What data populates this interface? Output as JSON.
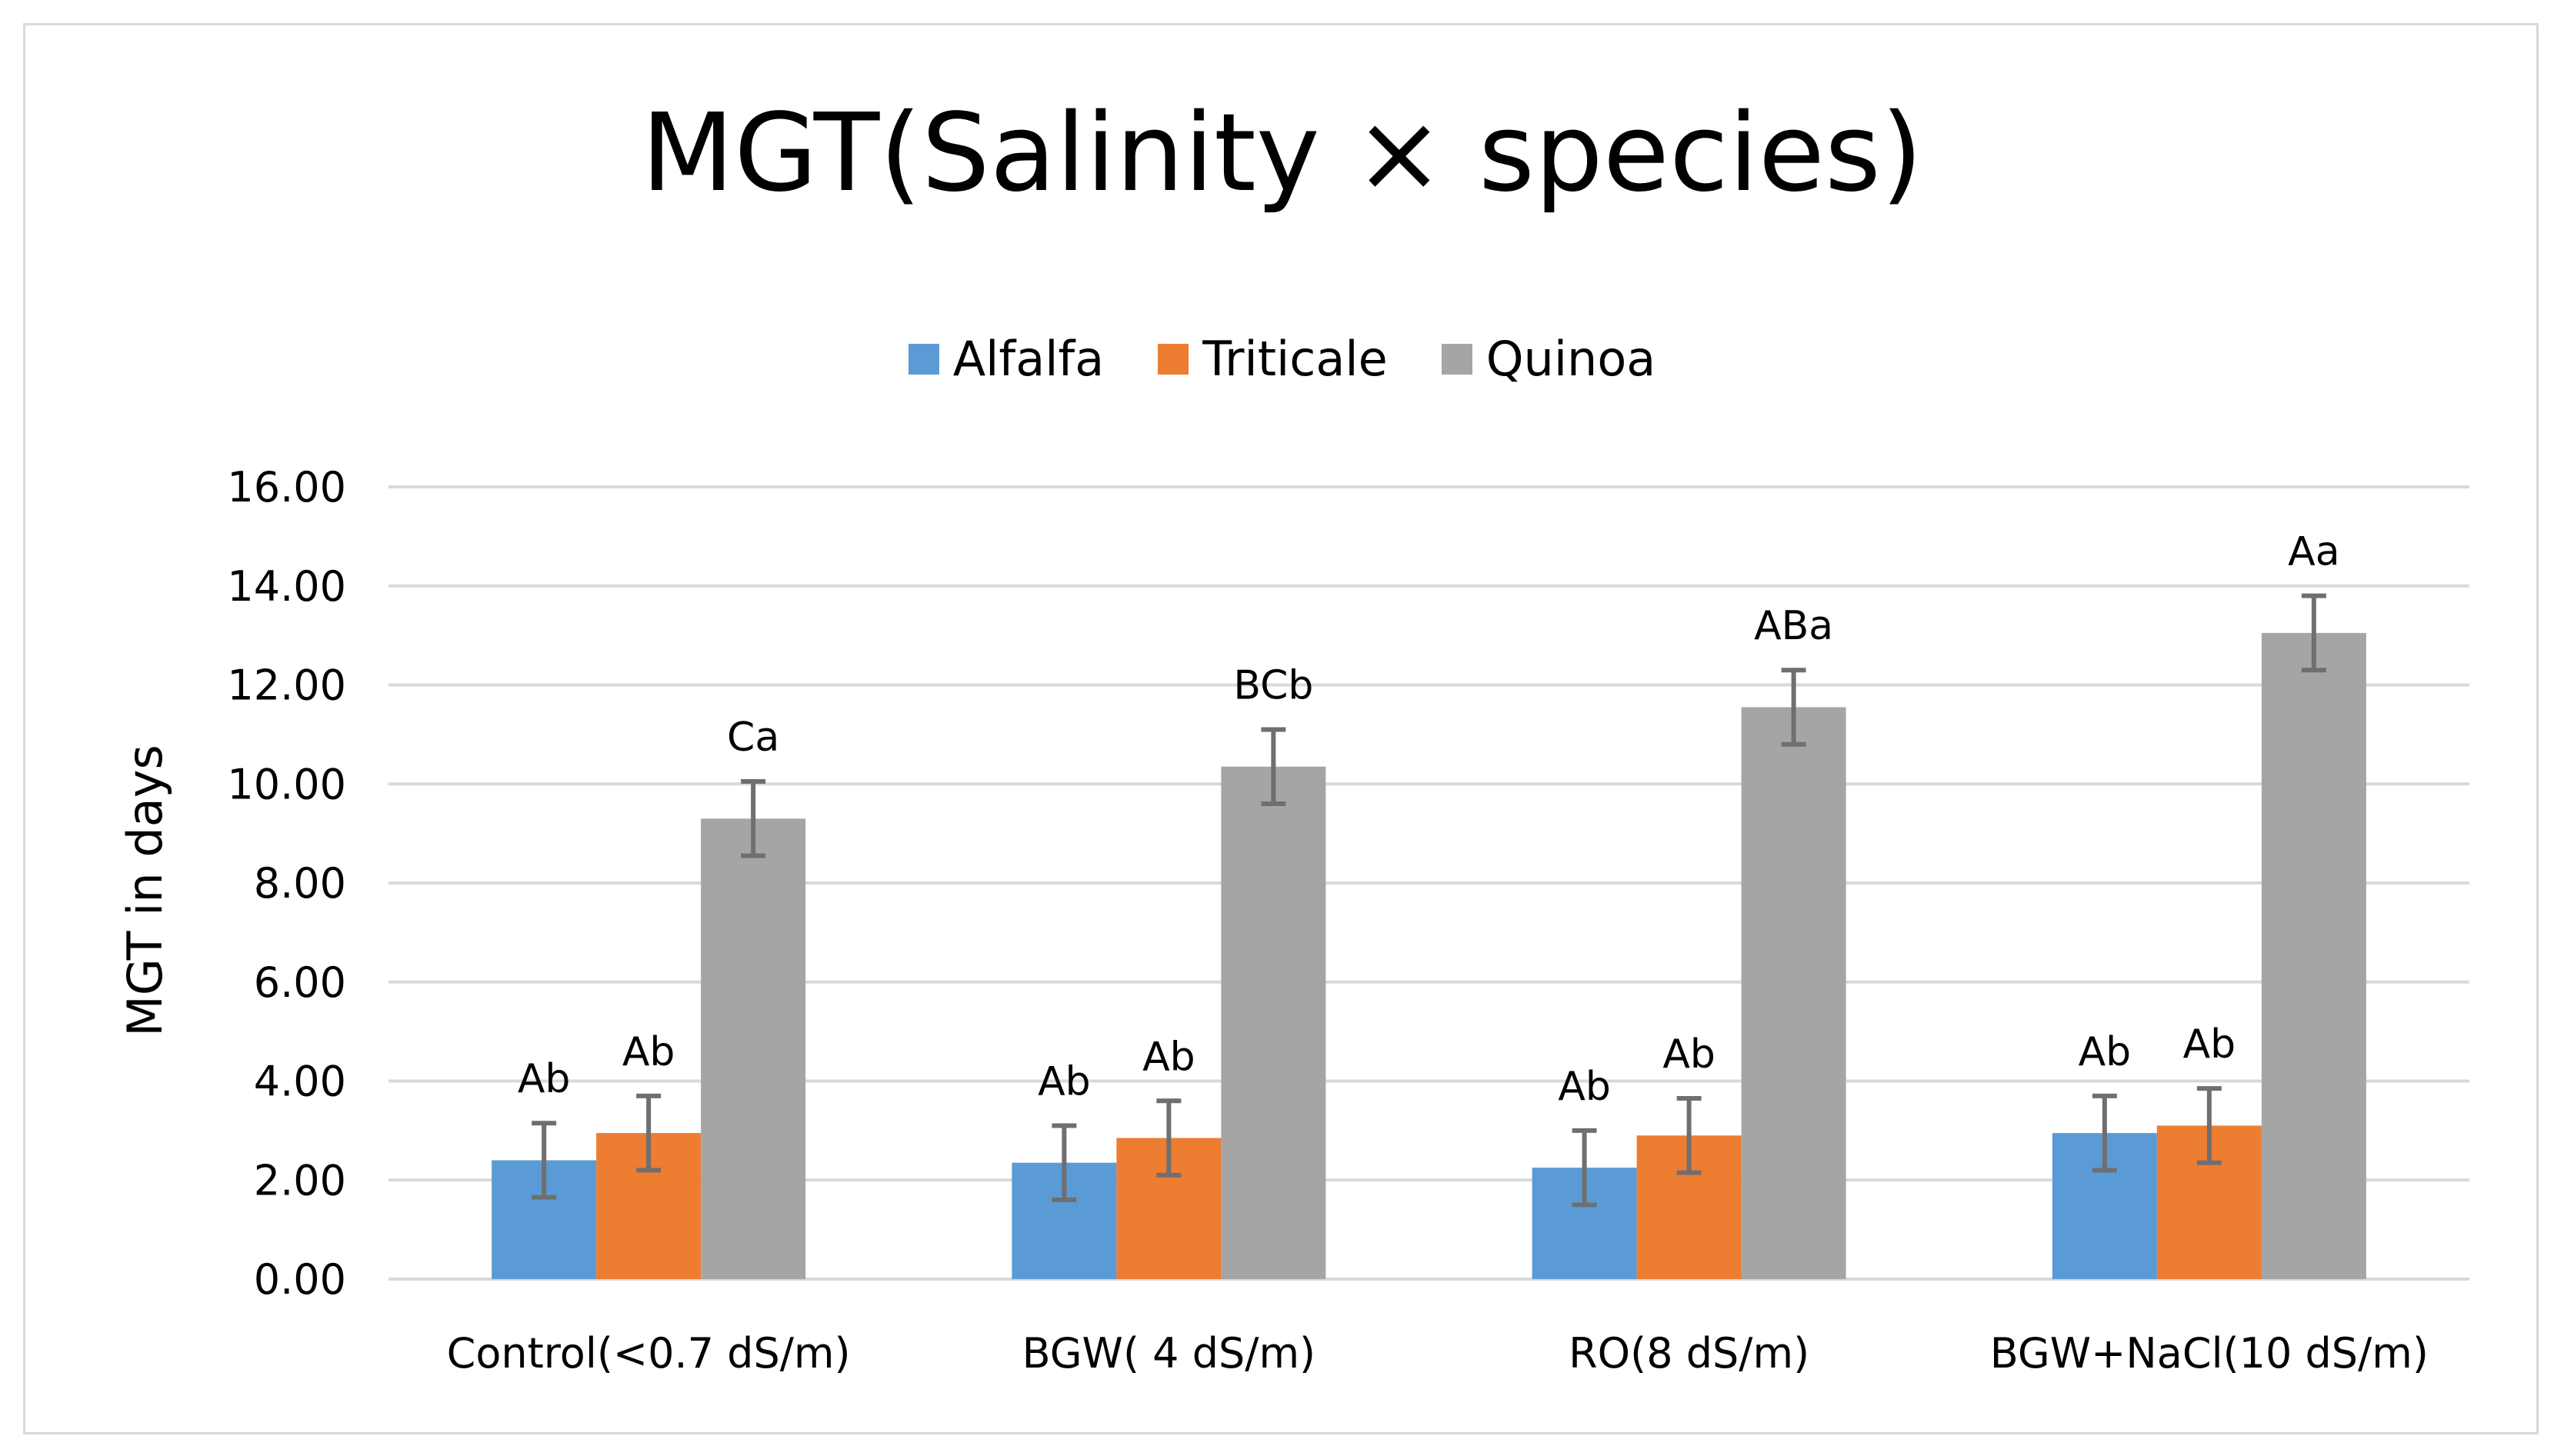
{
  "chart_data": {
    "type": "bar",
    "title": "MGT(Salinity × species)",
    "xlabel": "",
    "ylabel": "MGT in days",
    "ylim": [
      0,
      16
    ],
    "yticks": [
      0,
      2,
      4,
      6,
      8,
      10,
      12,
      14,
      16
    ],
    "ytick_labels": [
      "0.00",
      "2.00",
      "4.00",
      "6.00",
      "8.00",
      "10.00",
      "12.00",
      "14.00",
      "16.00"
    ],
    "grid": true,
    "legend_position": "top-center",
    "categories": [
      "Control(<0.7 dS/m)",
      "BGW( 4 dS/m)",
      "RO(8 dS/m)",
      "BGW+NaCl(10 dS/m)"
    ],
    "series": [
      {
        "name": "Alfalfa",
        "color": "#5b9bd5",
        "values": [
          2.4,
          2.35,
          2.25,
          2.95
        ],
        "errors": [
          0.75,
          0.75,
          0.75,
          0.75
        ],
        "labels": [
          "Ab",
          "Ab",
          "Ab",
          "Ab"
        ]
      },
      {
        "name": "Triticale",
        "color": "#ed7d31",
        "values": [
          2.95,
          2.85,
          2.9,
          3.1
        ],
        "errors": [
          0.75,
          0.75,
          0.75,
          0.75
        ],
        "labels": [
          "Ab",
          "Ab",
          "Ab",
          "Ab"
        ]
      },
      {
        "name": "Quinoa",
        "color": "#a5a5a5",
        "values": [
          9.3,
          10.35,
          11.55,
          13.05
        ],
        "errors": [
          0.75,
          0.75,
          0.75,
          0.75
        ],
        "labels": [
          "Ca",
          "BCb",
          "ABa",
          "Aa"
        ]
      }
    ],
    "error_bar_color": "#6f6f6f",
    "grid_color": "#d9d9d9"
  }
}
